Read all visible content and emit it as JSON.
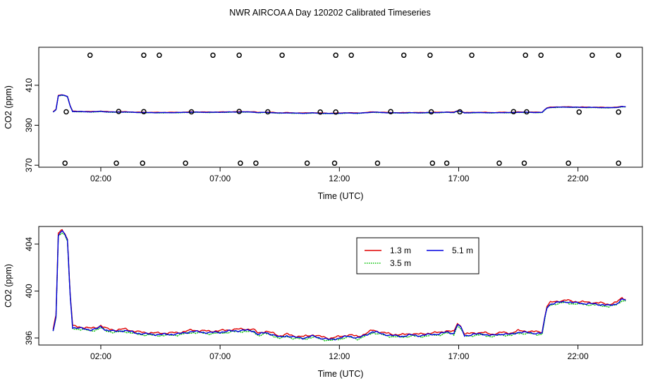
{
  "title": "NWR AIRCOA A  Day 120202  Calibrated Timeseries",
  "chart_data": [
    {
      "type": "line+scatter",
      "xlabel": "Time (UTC)",
      "ylabel": "CO2 (ppm)",
      "xlim": [
        -0.6,
        24.7
      ],
      "ylim": [
        369,
        429
      ],
      "xticks": [
        {
          "value": 2,
          "label": "02:00"
        },
        {
          "value": 7,
          "label": "07:00"
        },
        {
          "value": 12,
          "label": "12:00"
        },
        {
          "value": 17,
          "label": "17:00"
        },
        {
          "value": 22,
          "label": "22:00"
        }
      ],
      "yticks": [
        {
          "value": 370,
          "label": "370"
        },
        {
          "value": 390,
          "label": "390"
        },
        {
          "value": 410,
          "label": "410"
        }
      ],
      "calibration_points": [
        {
          "x": 1.55,
          "y": 425
        },
        {
          "x": 3.8,
          "y": 425
        },
        {
          "x": 4.45,
          "y": 425
        },
        {
          "x": 6.7,
          "y": 425
        },
        {
          "x": 7.8,
          "y": 425
        },
        {
          "x": 9.6,
          "y": 425
        },
        {
          "x": 11.85,
          "y": 425
        },
        {
          "x": 12.5,
          "y": 425
        },
        {
          "x": 14.7,
          "y": 425
        },
        {
          "x": 15.8,
          "y": 425
        },
        {
          "x": 17.55,
          "y": 425
        },
        {
          "x": 19.8,
          "y": 425
        },
        {
          "x": 20.45,
          "y": 425
        },
        {
          "x": 22.6,
          "y": 425
        },
        {
          "x": 23.7,
          "y": 425
        },
        {
          "x": 0.55,
          "y": 396.7
        },
        {
          "x": 2.75,
          "y": 396.9
        },
        {
          "x": 3.8,
          "y": 396.8
        },
        {
          "x": 5.8,
          "y": 396.7
        },
        {
          "x": 7.8,
          "y": 396.9
        },
        {
          "x": 9.0,
          "y": 396.7
        },
        {
          "x": 11.2,
          "y": 396.6
        },
        {
          "x": 11.85,
          "y": 396.6
        },
        {
          "x": 14.15,
          "y": 396.8
        },
        {
          "x": 15.85,
          "y": 396.7
        },
        {
          "x": 17.05,
          "y": 396.7
        },
        {
          "x": 19.3,
          "y": 396.8
        },
        {
          "x": 19.85,
          "y": 396.7
        },
        {
          "x": 22.05,
          "y": 396.6
        },
        {
          "x": 23.7,
          "y": 396.6
        },
        {
          "x": 0.5,
          "y": 371
        },
        {
          "x": 2.65,
          "y": 371
        },
        {
          "x": 3.75,
          "y": 371
        },
        {
          "x": 5.55,
          "y": 371
        },
        {
          "x": 7.85,
          "y": 371
        },
        {
          "x": 8.5,
          "y": 371
        },
        {
          "x": 10.65,
          "y": 371
        },
        {
          "x": 11.8,
          "y": 371
        },
        {
          "x": 13.6,
          "y": 371
        },
        {
          "x": 15.9,
          "y": 371
        },
        {
          "x": 16.5,
          "y": 371
        },
        {
          "x": 18.7,
          "y": 371
        },
        {
          "x": 19.75,
          "y": 371
        },
        {
          "x": 21.6,
          "y": 371
        },
        {
          "x": 23.7,
          "y": 371
        }
      ]
    },
    {
      "type": "line",
      "xlabel": "Time (UTC)",
      "ylabel": "CO2 (ppm)",
      "xlim": [
        -0.6,
        24.7
      ],
      "ylim": [
        395.4,
        405.5
      ],
      "xticks": [
        {
          "value": 2,
          "label": "02:00"
        },
        {
          "value": 7,
          "label": "07:00"
        },
        {
          "value": 12,
          "label": "12:00"
        },
        {
          "value": 17,
          "label": "17:00"
        },
        {
          "value": 22,
          "label": "22:00"
        }
      ],
      "yticks": [
        {
          "value": 396,
          "label": "396"
        },
        {
          "value": 400,
          "label": "400"
        },
        {
          "value": 404,
          "label": "404"
        }
      ],
      "legend": "top-center",
      "series": [
        {
          "name": "1.3 m",
          "color": "#e00000",
          "style": "solid"
        },
        {
          "name": "3.5 m",
          "color": "#00c000",
          "style": "dotted"
        },
        {
          "name": "5.1 m",
          "color": "#0000e0",
          "style": "solid"
        }
      ],
      "base_curve": [
        [
          0,
          396.6
        ],
        [
          0.12,
          397.8
        ],
        [
          0.22,
          404.8
        ],
        [
          0.38,
          405.1
        ],
        [
          0.5,
          404.8
        ],
        [
          0.6,
          404.3
        ],
        [
          0.72,
          399.5
        ],
        [
          0.82,
          396.9
        ],
        [
          1.2,
          396.8
        ],
        [
          1.6,
          396.7
        ],
        [
          1.85,
          396.8
        ],
        [
          2.0,
          396.95
        ],
        [
          2.2,
          396.7
        ],
        [
          2.6,
          396.55
        ],
        [
          3.0,
          396.65
        ],
        [
          3.4,
          396.45
        ],
        [
          3.8,
          396.35
        ],
        [
          4.3,
          396.3
        ],
        [
          4.8,
          396.3
        ],
        [
          5.3,
          396.35
        ],
        [
          5.8,
          396.55
        ],
        [
          6.2,
          396.5
        ],
        [
          6.6,
          396.45
        ],
        [
          7.0,
          396.5
        ],
        [
          7.5,
          396.6
        ],
        [
          8.0,
          396.65
        ],
        [
          8.4,
          396.6
        ],
        [
          8.6,
          396.3
        ],
        [
          8.9,
          396.45
        ],
        [
          9.2,
          396.3
        ],
        [
          9.5,
          396.05
        ],
        [
          9.8,
          396.2
        ],
        [
          10.1,
          396.05
        ],
        [
          10.5,
          396.0
        ],
        [
          10.9,
          396.15
        ],
        [
          11.2,
          396.0
        ],
        [
          11.6,
          395.85
        ],
        [
          12.0,
          396.0
        ],
        [
          12.4,
          396.15
        ],
        [
          12.8,
          396.0
        ],
        [
          13.1,
          396.25
        ],
        [
          13.4,
          396.55
        ],
        [
          13.8,
          396.35
        ],
        [
          14.2,
          396.2
        ],
        [
          14.6,
          396.15
        ],
        [
          15.0,
          396.25
        ],
        [
          15.4,
          396.2
        ],
        [
          15.8,
          396.3
        ],
        [
          16.2,
          396.35
        ],
        [
          16.5,
          396.5
        ],
        [
          16.8,
          396.4
        ],
        [
          16.95,
          397.15
        ],
        [
          17.1,
          396.85
        ],
        [
          17.25,
          396.2
        ],
        [
          17.6,
          396.3
        ],
        [
          18.0,
          396.35
        ],
        [
          18.4,
          396.2
        ],
        [
          18.8,
          396.35
        ],
        [
          19.2,
          396.3
        ],
        [
          19.5,
          396.5
        ],
        [
          19.9,
          396.45
        ],
        [
          20.3,
          396.4
        ],
        [
          20.5,
          396.4
        ],
        [
          20.6,
          397.6
        ],
        [
          20.7,
          398.6
        ],
        [
          20.85,
          398.9
        ],
        [
          21.1,
          399.0
        ],
        [
          21.5,
          399.1
        ],
        [
          21.8,
          399.0
        ],
        [
          22.2,
          398.95
        ],
        [
          22.6,
          398.9
        ],
        [
          23.0,
          398.85
        ],
        [
          23.3,
          398.75
        ],
        [
          23.6,
          398.9
        ],
        [
          23.85,
          399.3
        ],
        [
          24.0,
          399.2
        ]
      ],
      "offsets": [
        0.12,
        -0.08,
        0.0
      ]
    }
  ]
}
